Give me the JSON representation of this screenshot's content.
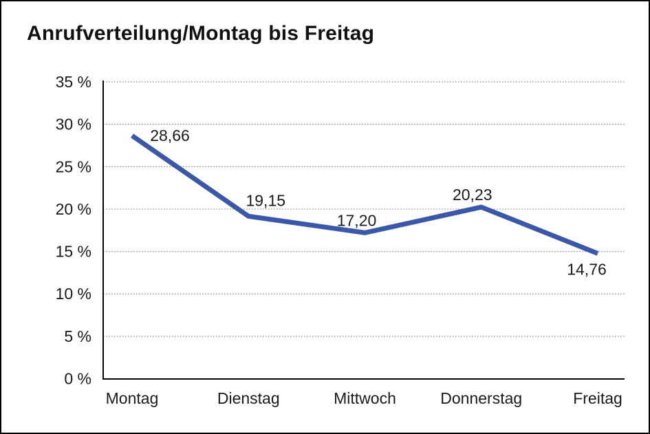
{
  "page": {
    "background": "#FFFFFF",
    "frame_border_color": "#000000"
  },
  "chart_data": {
    "type": "line",
    "title": "Anrufverteilung/Montag bis Freitag",
    "xlabel": "",
    "ylabel": "",
    "categories": [
      "Montag",
      "Dienstag",
      "Mittwoch",
      "Donnerstag",
      "Freitag"
    ],
    "series": [
      {
        "name": "Anrufverteilung",
        "values": [
          28.66,
          19.15,
          17.2,
          20.23,
          14.76
        ],
        "value_labels": [
          "28,66",
          "19,15",
          "17,20",
          "20,23",
          "14,76"
        ],
        "color": "#3A57A8"
      }
    ],
    "ylim": [
      0,
      35
    ],
    "y_tick_step": 5,
    "y_tick_labels": [
      "0 %",
      "5 %",
      "10 %",
      "15 %",
      "20 %",
      "25 %",
      "30 %",
      "35 %"
    ],
    "grid": "horizontal dotted",
    "grid_color": "#8A8A8A",
    "axis_color": "#000000",
    "text_color": "#1A1A1A",
    "legend_position": "none"
  }
}
